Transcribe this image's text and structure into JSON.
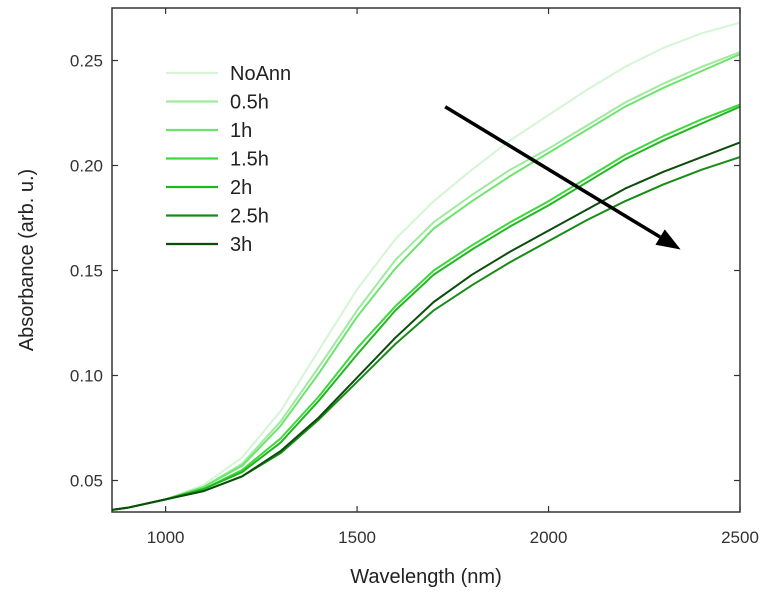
{
  "chart_data": {
    "type": "line",
    "title": "",
    "xlabel": "Wavelength (nm)",
    "ylabel": "Absorbance (arb. u.)",
    "xlim": [
      860,
      2500
    ],
    "ylim": [
      0.035,
      0.275
    ],
    "x_ticks": [
      1000,
      1500,
      2000,
      2500
    ],
    "y_ticks": [
      0.05,
      0.1,
      0.15,
      0.2,
      0.25
    ],
    "x_tick_labels": [
      "1000",
      "1500",
      "2000",
      "2500"
    ],
    "y_tick_labels": [
      "0.05",
      "0.10",
      "0.15",
      "0.20",
      "0.25"
    ],
    "grid": false,
    "legend_position": "top-left",
    "x": [
      860,
      900,
      1000,
      1100,
      1200,
      1300,
      1400,
      1500,
      1600,
      1700,
      1800,
      1900,
      2000,
      2100,
      2200,
      2300,
      2400,
      2500
    ],
    "series": [
      {
        "name": "NoAnn",
        "color": "#d5f5d5",
        "values": [
          0.036,
          0.037,
          0.041,
          0.048,
          0.061,
          0.083,
          0.112,
          0.141,
          0.165,
          0.183,
          0.198,
          0.212,
          0.224,
          0.236,
          0.247,
          0.256,
          0.263,
          0.268
        ]
      },
      {
        "name": "0.5h",
        "color": "#9eea9e",
        "values": [
          0.036,
          0.037,
          0.041,
          0.047,
          0.058,
          0.078,
          0.104,
          0.131,
          0.155,
          0.173,
          0.186,
          0.198,
          0.208,
          0.219,
          0.23,
          0.239,
          0.247,
          0.254
        ]
      },
      {
        "name": "1h",
        "color": "#6ee46e",
        "values": [
          0.036,
          0.037,
          0.041,
          0.047,
          0.057,
          0.076,
          0.101,
          0.128,
          0.151,
          0.17,
          0.183,
          0.195,
          0.206,
          0.217,
          0.228,
          0.237,
          0.245,
          0.253
        ]
      },
      {
        "name": "1.5h",
        "color": "#3ed83e",
        "values": [
          0.036,
          0.037,
          0.041,
          0.046,
          0.055,
          0.07,
          0.09,
          0.113,
          0.133,
          0.15,
          0.162,
          0.173,
          0.183,
          0.194,
          0.205,
          0.214,
          0.222,
          0.229
        ]
      },
      {
        "name": "2h",
        "color": "#1fb81f",
        "values": [
          0.036,
          0.037,
          0.041,
          0.046,
          0.054,
          0.068,
          0.088,
          0.11,
          0.131,
          0.148,
          0.16,
          0.171,
          0.181,
          0.192,
          0.203,
          0.212,
          0.22,
          0.228
        ]
      },
      {
        "name": "2.5h",
        "color": "#178c17",
        "values": [
          0.036,
          0.037,
          0.041,
          0.045,
          0.052,
          0.063,
          0.079,
          0.097,
          0.115,
          0.131,
          0.143,
          0.154,
          0.164,
          0.174,
          0.183,
          0.191,
          0.198,
          0.204
        ]
      },
      {
        "name": "3h",
        "color": "#0b4d0b",
        "values": [
          0.036,
          0.037,
          0.041,
          0.045,
          0.052,
          0.064,
          0.08,
          0.099,
          0.118,
          0.135,
          0.148,
          0.159,
          0.169,
          0.179,
          0.189,
          0.197,
          0.204,
          0.211
        ]
      }
    ],
    "annotation": {
      "type": "arrow",
      "from": [
        1730,
        0.228
      ],
      "to": [
        2345,
        0.16
      ],
      "color": "#000000"
    }
  }
}
